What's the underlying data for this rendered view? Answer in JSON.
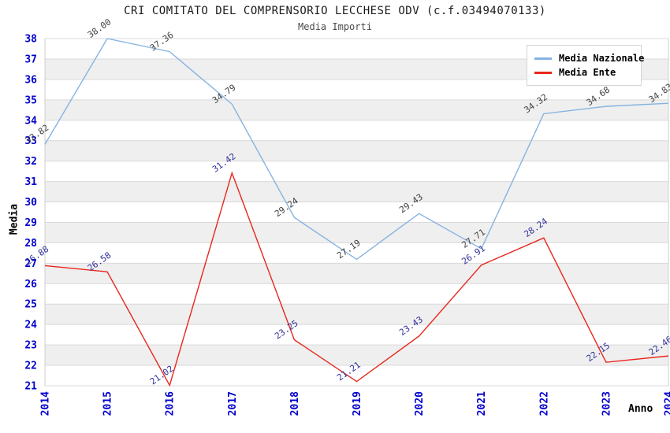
{
  "header": {
    "title": "CRI COMITATO DEL COMPRENSORIO LECCHESE ODV (c.f.03494070133)",
    "subtitle": "Media Importi"
  },
  "chart_data": {
    "type": "line",
    "title": "CRI COMITATO DEL COMPRENSORIO LECCHESE ODV (c.f.03494070133)",
    "subtitle": "Media Importi",
    "xlabel": "Anno",
    "ylabel": "Media",
    "categories": [
      "2014",
      "2015",
      "2016",
      "2017",
      "2018",
      "2019",
      "2020",
      "2021",
      "2022",
      "2023",
      "2024"
    ],
    "series": [
      {
        "name": "Media Nazionale",
        "color": "#85b3e1",
        "label_color": "#3f3f3f",
        "values": [
          32.82,
          38.0,
          37.36,
          34.79,
          29.24,
          27.19,
          29.43,
          27.71,
          34.32,
          34.68,
          34.83
        ]
      },
      {
        "name": "Media Ente",
        "color": "#e8271d",
        "label_color": "#30309a",
        "values": [
          26.88,
          26.58,
          21.02,
          31.42,
          23.25,
          21.21,
          23.43,
          26.91,
          28.24,
          22.15,
          22.46
        ]
      }
    ],
    "ylim": [
      21,
      38
    ],
    "ytick_step": 1,
    "grid": true,
    "stripes": true,
    "legend_position": "top-right",
    "tick_label_color": "#0000cc",
    "stripe_color": "#efefef",
    "gridline_color": "#d9d9d9",
    "value_label_decimals": 2
  }
}
